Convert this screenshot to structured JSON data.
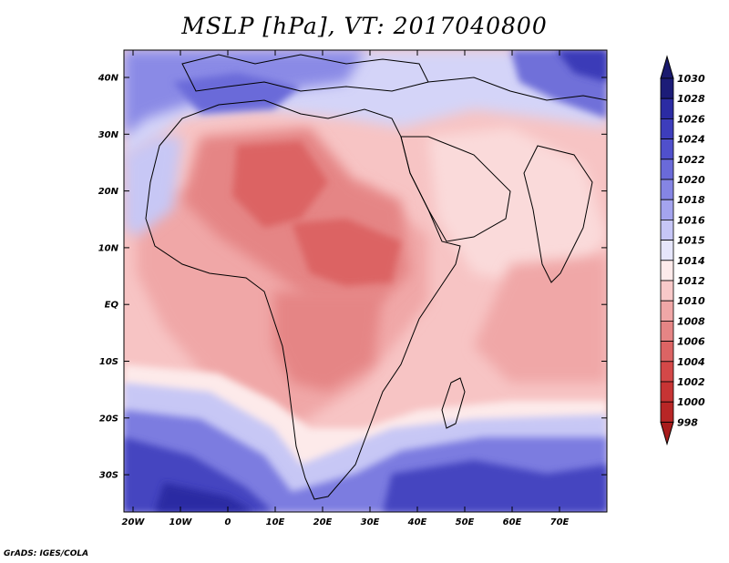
{
  "title": "MSLP [hPa], VT: 2017040800",
  "credit": "GrADS: IGES/COLA",
  "axes": {
    "lat_labels": [
      "40N",
      "30N",
      "20N",
      "10N",
      "EQ",
      "10S",
      "20S",
      "30S"
    ],
    "lon_labels": [
      "20W",
      "10W",
      "0",
      "10E",
      "20E",
      "30E",
      "40E",
      "50E",
      "60E",
      "70E"
    ]
  },
  "colorbar": {
    "levels": [
      "1030",
      "1028",
      "1026",
      "1024",
      "1022",
      "1020",
      "1018",
      "1016",
      "1015",
      "1014",
      "1012",
      "1010",
      "1008",
      "1006",
      "1004",
      "1002",
      "1000",
      "998"
    ],
    "colors": [
      "#1c1c78",
      "#2b2ba3",
      "#3d3dbc",
      "#5050cc",
      "#6a6ad9",
      "#8585e4",
      "#a4a4ee",
      "#c6c6f6",
      "#e6e6fb",
      "#fdeaea",
      "#f8c9c9",
      "#f0a7a7",
      "#e58585",
      "#dc6464",
      "#d44848",
      "#c73434",
      "#b82626"
    ],
    "top_arrow_color": "#1a1a6e",
    "bottom_arrow_color": "#a81c1c"
  },
  "palette": {
    "background_field": "#f7c4c4",
    "ocean_south_deep": "#3a3ab8",
    "ocean_south_mid": "#7b7be0",
    "ocean_south_light": "#c7c7f5",
    "north_blue": "#6f6fd9",
    "low_core": "#d96060",
    "low_mid": "#e68a8a",
    "coast_line": "#000000"
  }
}
